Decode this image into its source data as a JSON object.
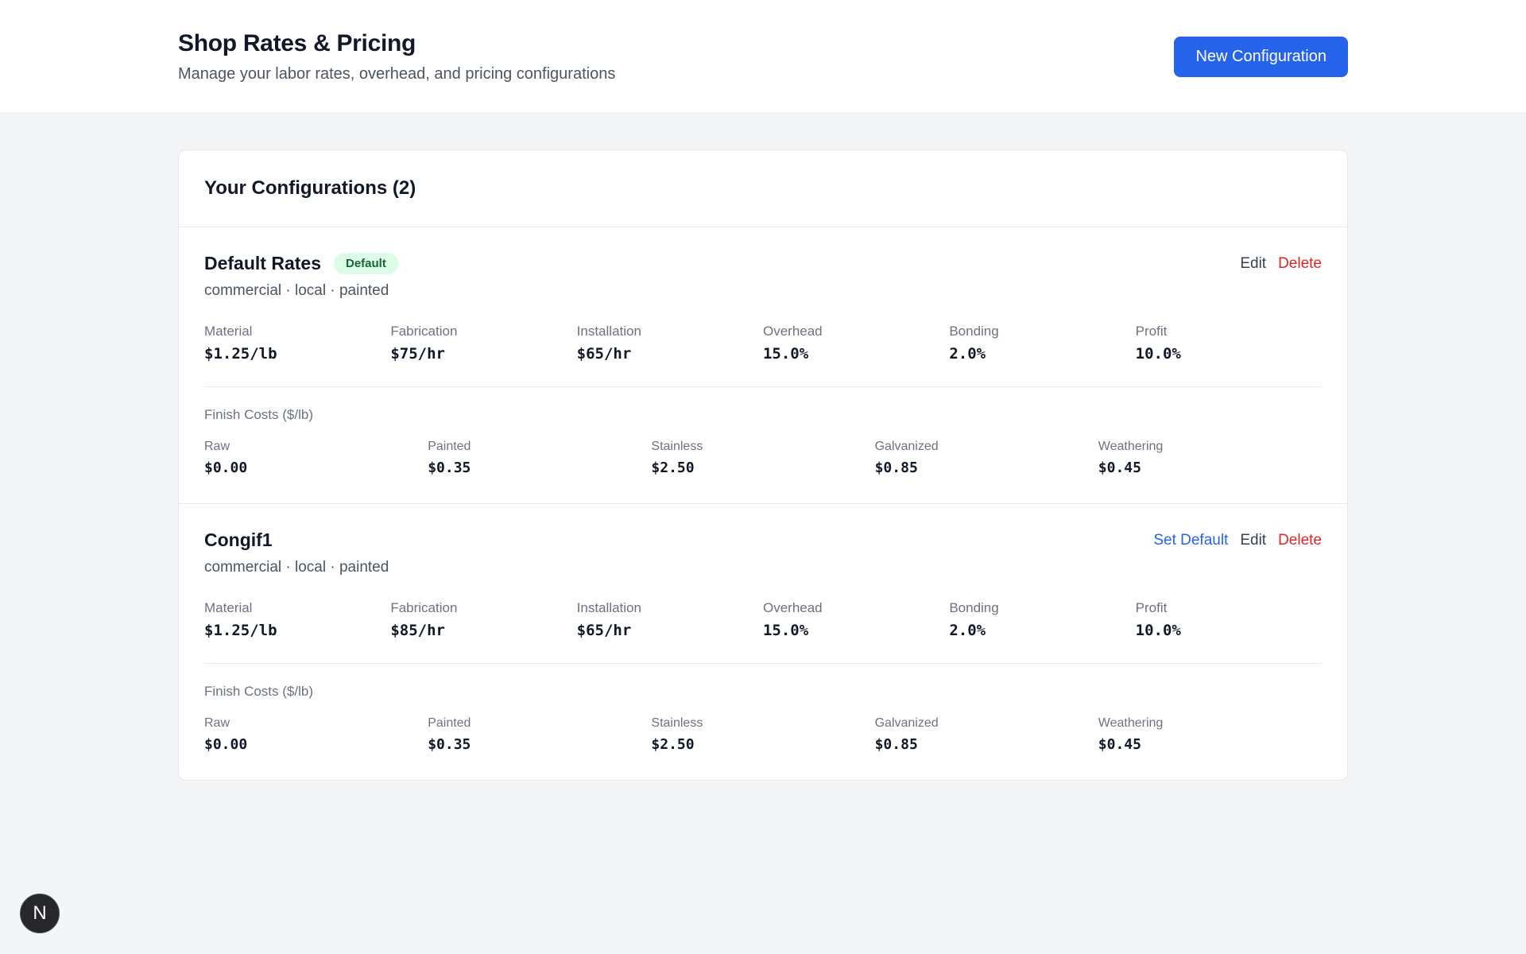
{
  "header": {
    "title": "Shop Rates & Pricing",
    "subtitle": "Manage your labor rates, overhead, and pricing configurations",
    "new_config_button": "New Configuration"
  },
  "panel": {
    "title": "Your Configurations (2)"
  },
  "finish_costs_label": "Finish Costs ($/lb)",
  "configurations": [
    {
      "name": "Default Rates",
      "badge": "Default",
      "meta": "commercial · local · painted",
      "actions": {
        "edit": "Edit",
        "delete": "Delete"
      },
      "stats": [
        {
          "label": "Material",
          "value": "$1.25/lb"
        },
        {
          "label": "Fabrication",
          "value": "$75/hr"
        },
        {
          "label": "Installation",
          "value": "$65/hr"
        },
        {
          "label": "Overhead",
          "value": "15.0%"
        },
        {
          "label": "Bonding",
          "value": "2.0%"
        },
        {
          "label": "Profit",
          "value": "10.0%"
        }
      ],
      "finish_costs": [
        {
          "label": "Raw",
          "value": "$0.00"
        },
        {
          "label": "Painted",
          "value": "$0.35"
        },
        {
          "label": "Stainless",
          "value": "$2.50"
        },
        {
          "label": "Galvanized",
          "value": "$0.85"
        },
        {
          "label": "Weathering",
          "value": "$0.45"
        }
      ]
    },
    {
      "name": "Congif1",
      "badge": null,
      "meta": "commercial · local · painted",
      "actions": {
        "set_default": "Set Default",
        "edit": "Edit",
        "delete": "Delete"
      },
      "stats": [
        {
          "label": "Material",
          "value": "$1.25/lb"
        },
        {
          "label": "Fabrication",
          "value": "$85/hr"
        },
        {
          "label": "Installation",
          "value": "$65/hr"
        },
        {
          "label": "Overhead",
          "value": "15.0%"
        },
        {
          "label": "Bonding",
          "value": "2.0%"
        },
        {
          "label": "Profit",
          "value": "10.0%"
        }
      ],
      "finish_costs": [
        {
          "label": "Raw",
          "value": "$0.00"
        },
        {
          "label": "Painted",
          "value": "$0.35"
        },
        {
          "label": "Stainless",
          "value": "$2.50"
        },
        {
          "label": "Galvanized",
          "value": "$0.85"
        },
        {
          "label": "Weathering",
          "value": "$0.45"
        }
      ]
    }
  ],
  "floating_button": {
    "label": "N"
  },
  "colors": {
    "accent": "#2563eb",
    "danger": "#dc2626",
    "badge_bg": "#dcfce7",
    "badge_text": "#166534",
    "page_bg": "#f4f5f7"
  }
}
